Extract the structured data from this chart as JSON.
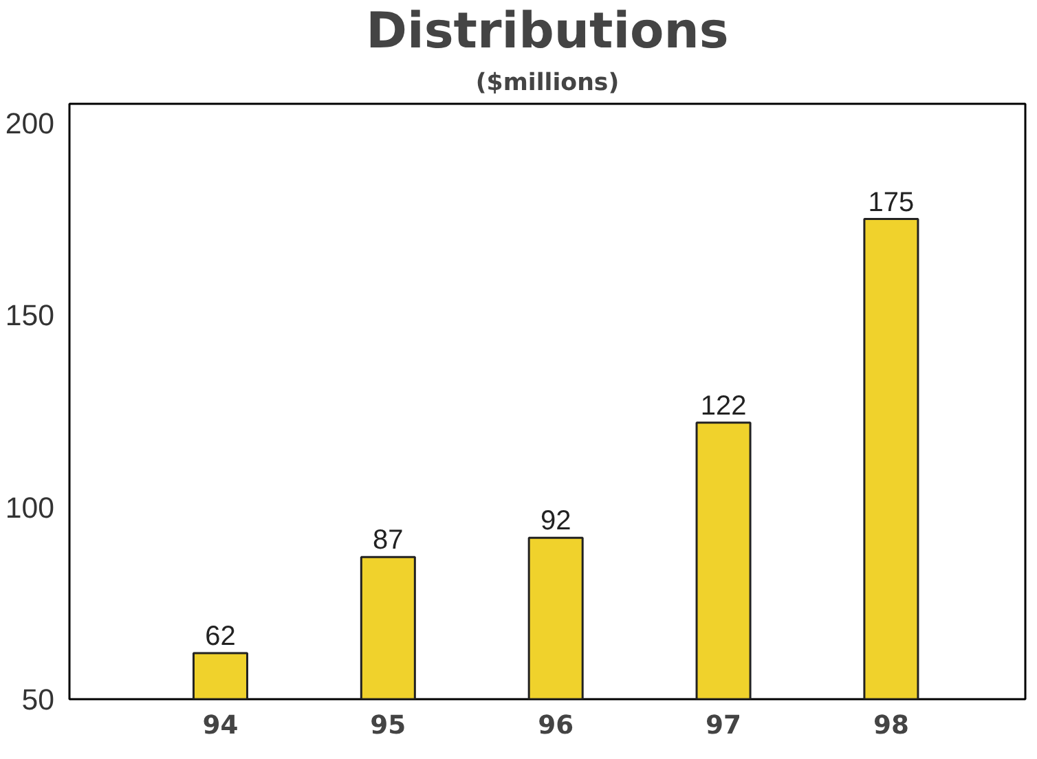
{
  "chart_data": {
    "type": "bar",
    "title": "Distributions",
    "subtitle": "($millions)",
    "categories": [
      "94",
      "95",
      "96",
      "97",
      "98"
    ],
    "values": [
      62,
      87,
      92,
      122,
      175
    ],
    "color": "#f0d22c",
    "ylim": [
      50,
      205
    ],
    "yticks": [
      50,
      100,
      150,
      200
    ],
    "grid": false,
    "data_labels": true
  }
}
